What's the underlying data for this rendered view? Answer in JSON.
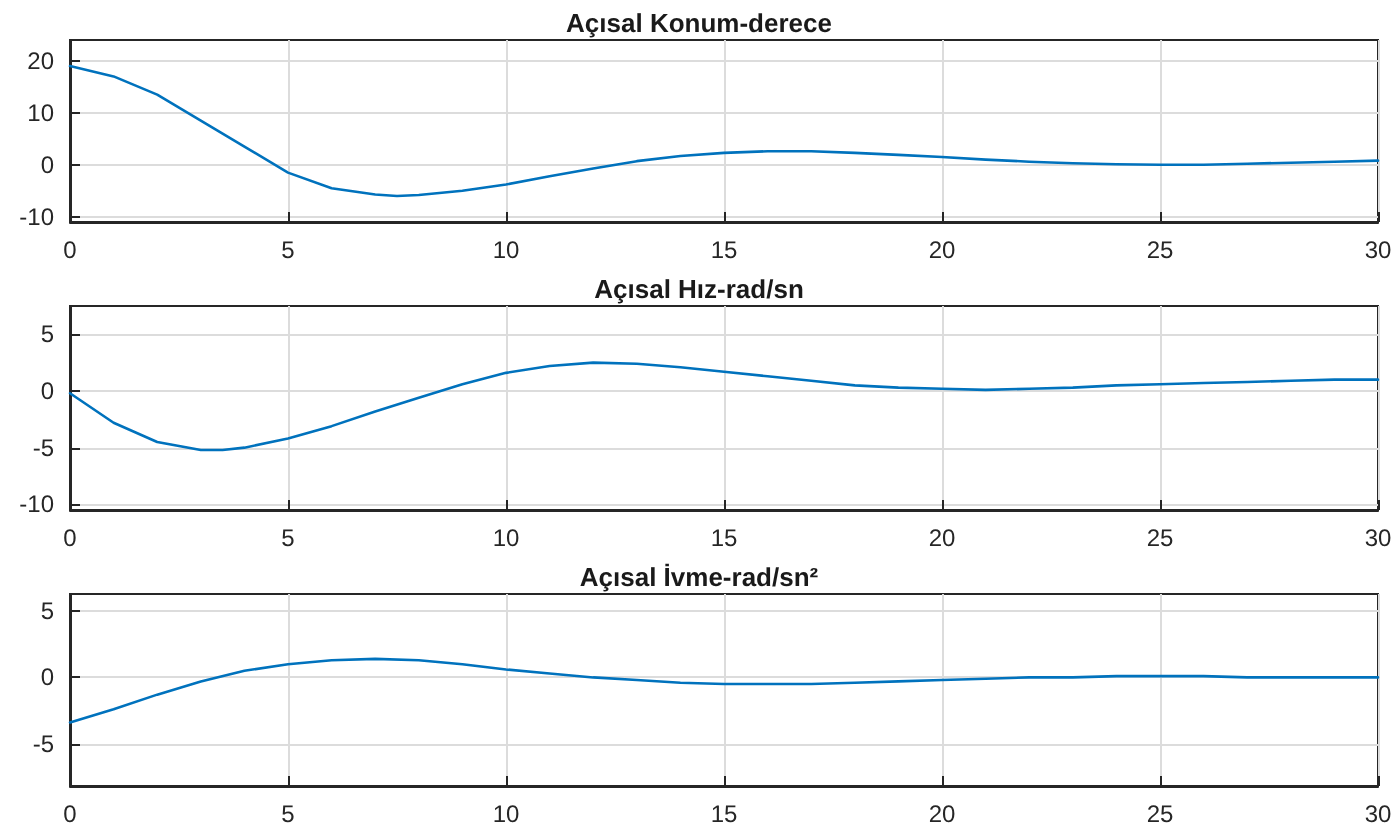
{
  "chart_data": [
    {
      "type": "line",
      "title": "Açısal Konum-derece",
      "x": [
        0,
        1,
        2,
        3,
        4,
        5,
        6,
        7,
        7.5,
        8,
        9,
        10,
        11,
        12,
        13,
        14,
        15,
        16,
        17,
        18,
        19,
        20,
        21,
        22,
        23,
        24,
        25,
        26,
        27,
        28,
        29,
        30
      ],
      "series": [
        {
          "color": "#0072bd",
          "values": [
            19,
            17,
            13.5,
            8.5,
            3.5,
            -1.5,
            -4.5,
            -5.7,
            -6,
            -5.8,
            -5,
            -3.8,
            -2.2,
            -0.7,
            0.7,
            1.7,
            2.3,
            2.6,
            2.6,
            2.3,
            1.9,
            1.5,
            1,
            0.6,
            0.3,
            0.1,
            0,
            0,
            0.2,
            0.4,
            0.6,
            0.8
          ]
        }
      ],
      "xlim": [
        0,
        30
      ],
      "xticks": [
        0,
        5,
        10,
        15,
        20,
        25,
        30
      ],
      "ylim": [
        -11,
        24
      ],
      "yticks": [
        -10,
        0,
        10,
        20
      ],
      "grid": true
    },
    {
      "type": "line",
      "title": "Açısal Hız-rad/sn",
      "x": [
        0,
        0.5,
        1,
        2,
        3,
        3.5,
        4,
        5,
        6,
        7,
        8,
        9,
        10,
        11,
        12,
        13,
        14,
        15,
        16,
        17,
        18,
        19,
        20,
        21,
        22,
        23,
        24,
        25,
        26,
        27,
        28,
        29,
        30
      ],
      "series": [
        {
          "color": "#0072bd",
          "values": [
            -0.2,
            -1.5,
            -2.8,
            -4.5,
            -5.2,
            -5.2,
            -5,
            -4.2,
            -3.1,
            -1.8,
            -0.6,
            0.6,
            1.6,
            2.2,
            2.5,
            2.4,
            2.1,
            1.7,
            1.3,
            0.9,
            0.5,
            0.3,
            0.2,
            0.1,
            0.2,
            0.3,
            0.5,
            0.6,
            0.7,
            0.8,
            0.9,
            1,
            1
          ]
        }
      ],
      "xlim": [
        0,
        30
      ],
      "xticks": [
        0,
        5,
        10,
        15,
        20,
        25,
        30
      ],
      "ylim": [
        -10.5,
        7.5
      ],
      "yticks": [
        -10,
        -5,
        0,
        5
      ],
      "grid": true
    },
    {
      "type": "line",
      "title": "Açısal İvme-rad/sn²",
      "x": [
        0,
        1,
        2,
        3,
        4,
        5,
        6,
        7,
        8,
        9,
        10,
        11,
        12,
        13,
        14,
        15,
        16,
        17,
        18,
        19,
        20,
        21,
        22,
        23,
        24,
        25,
        26,
        27,
        28,
        29,
        30
      ],
      "series": [
        {
          "color": "#0072bd",
          "values": [
            -3.4,
            -2.4,
            -1.3,
            -0.3,
            0.5,
            1,
            1.3,
            1.4,
            1.3,
            1,
            0.6,
            0.3,
            0,
            -0.2,
            -0.4,
            -0.5,
            -0.5,
            -0.5,
            -0.4,
            -0.3,
            -0.2,
            -0.1,
            0,
            0,
            0.1,
            0.1,
            0.1,
            0,
            0,
            0,
            0
          ]
        }
      ],
      "xlim": [
        0,
        30
      ],
      "xticks": [
        0,
        5,
        10,
        15,
        20,
        25,
        30
      ],
      "ylim": [
        -8.2,
        6.3
      ],
      "yticks": [
        -5,
        0,
        5
      ],
      "grid": true
    }
  ]
}
